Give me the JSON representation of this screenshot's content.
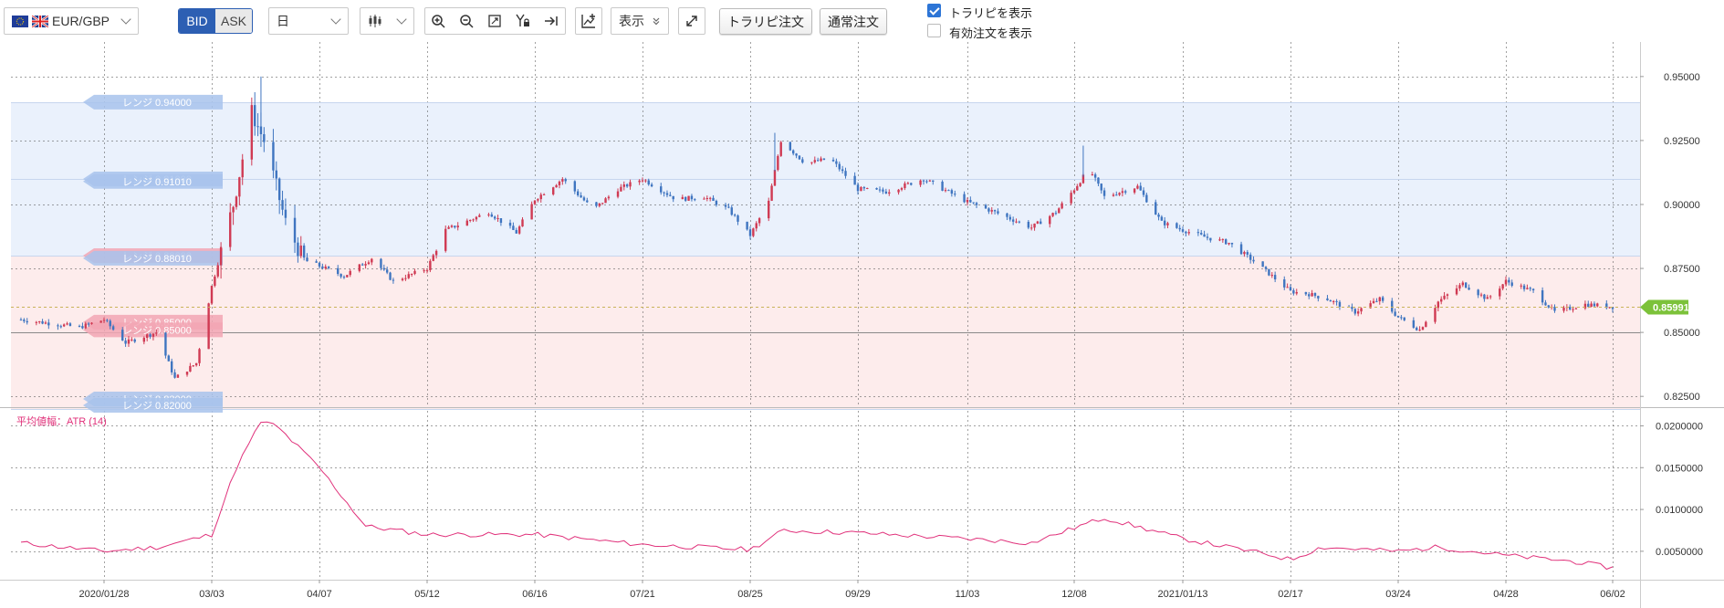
{
  "toolbar": {
    "pair": "EUR/GBP",
    "bid_label": "BID",
    "ask_label": "ASK",
    "timeframe": "日",
    "display_label": "表示",
    "torarip_order_label": "トラリピ注文",
    "normal_order_label": "通常注文",
    "show_torarip_label": "トラリピを表示",
    "show_torarip_checked": true,
    "show_active_orders_label": "有効注文を表示",
    "show_active_orders_checked": false
  },
  "colors": {
    "up": "#d03a53",
    "down": "#3f75c0",
    "atr": "#e0307a",
    "price_badge": "#7cc23a",
    "band_blue": "#eaf1fc",
    "band_red": "#fdecec"
  },
  "chart_data": [
    {
      "type": "candlestick",
      "x_dates": [
        "2020/01/28",
        "03/03",
        "04/07",
        "05/12",
        "06/16",
        "07/21",
        "08/25",
        "09/29",
        "11/03",
        "12/08",
        "2021/01/13",
        "02/17",
        "03/24",
        "04/28",
        "06/02"
      ],
      "y_tick_labels": [
        "0.95000",
        "0.92500",
        "0.90000",
        "0.87500",
        "0.85000",
        "0.82500"
      ],
      "ylim": [
        0.8215,
        0.9635
      ],
      "current_price": "0.85991",
      "range_labels": [
        {
          "text": "レンジ 0.94000",
          "band": "blue"
        },
        {
          "text": "レンジ 0.91000",
          "band": "blue"
        },
        {
          "text": "レンジ 0.91010",
          "band": "blue"
        },
        {
          "text": "レンジ 0.88000",
          "band": "red"
        },
        {
          "text": "レンジ 0.88010",
          "band": "blue"
        },
        {
          "text": "レンジ 0.85000",
          "band": "red"
        },
        {
          "text": "レンジ 0.85000",
          "band": "red"
        },
        {
          "text": "レンジ 0.82000",
          "band": "blue"
        },
        {
          "text": "レンジ 0.82000",
          "band": "blue"
        }
      ],
      "bands": [
        {
          "from": 0.88,
          "to": 0.94,
          "color": "blue"
        },
        {
          "from": 0.82,
          "to": 0.88,
          "color": "red"
        }
      ],
      "close_path": [
        [
          "2020/01/01",
          0.855
        ],
        [
          "2020/01/20",
          0.852
        ],
        [
          "2020/01/28",
          0.855
        ],
        [
          "2020/02/04",
          0.846
        ],
        [
          "2020/02/14",
          0.85
        ],
        [
          "2020/02/20",
          0.832
        ],
        [
          "2020/02/27",
          0.838
        ],
        [
          "2020/03/03",
          0.868
        ],
        [
          "2020/03/10",
          0.9
        ],
        [
          "2020/03/16",
          0.936
        ],
        [
          "2020/03/20",
          0.925
        ],
        [
          "2020/03/27",
          0.893
        ],
        [
          "2020/04/02",
          0.878
        ],
        [
          "2020/04/07",
          0.876
        ],
        [
          "2020/04/15",
          0.872
        ],
        [
          "2020/04/24",
          0.879
        ],
        [
          "2020/05/01",
          0.87
        ],
        [
          "2020/05/12",
          0.875
        ],
        [
          "2020/05/18",
          0.89
        ],
        [
          "2020/06/01",
          0.897
        ],
        [
          "2020/06/10",
          0.889
        ],
        [
          "2020/06/16",
          0.902
        ],
        [
          "2020/06/25",
          0.91
        ],
        [
          "2020/07/05",
          0.898
        ],
        [
          "2020/07/13",
          0.906
        ],
        [
          "2020/07/21",
          0.91
        ],
        [
          "2020/08/01",
          0.902
        ],
        [
          "2020/08/10",
          0.903
        ],
        [
          "2020/08/18",
          0.898
        ],
        [
          "2020/08/25",
          0.888
        ],
        [
          "2020/08/31",
          0.901
        ],
        [
          "2020/09/04",
          0.925
        ],
        [
          "2020/09/12",
          0.916
        ],
        [
          "2020/09/20",
          0.918
        ],
        [
          "2020/09/29",
          0.906
        ],
        [
          "2020/10/08",
          0.905
        ],
        [
          "2020/10/20",
          0.91
        ],
        [
          "2020/11/03",
          0.901
        ],
        [
          "2020/11/12",
          0.897
        ],
        [
          "2020/11/24",
          0.891
        ],
        [
          "2020/12/02",
          0.897
        ],
        [
          "2020/12/08",
          0.906
        ],
        [
          "2020/12/13",
          0.914
        ],
        [
          "2020/12/18",
          0.903
        ],
        [
          "2020/12/29",
          0.907
        ],
        [
          "2021/01/06",
          0.893
        ],
        [
          "2021/01/13",
          0.89
        ],
        [
          "2021/01/21",
          0.887
        ],
        [
          "2021/01/28",
          0.885
        ],
        [
          "2021/02/06",
          0.877
        ],
        [
          "2021/02/17",
          0.866
        ],
        [
          "2021/02/23",
          0.865
        ],
        [
          "2021/03/01",
          0.863
        ],
        [
          "2021/03/10",
          0.858
        ],
        [
          "2021/03/18",
          0.863
        ],
        [
          "2021/03/24",
          0.856
        ],
        [
          "2021/03/31",
          0.851
        ],
        [
          "2021/04/06",
          0.862
        ],
        [
          "2021/04/14",
          0.869
        ],
        [
          "2021/04/22",
          0.863
        ],
        [
          "2021/04/28",
          0.87
        ],
        [
          "2021/05/07",
          0.866
        ],
        [
          "2021/05/14",
          0.858
        ],
        [
          "2021/05/24",
          0.861
        ],
        [
          "2021/06/02",
          0.86
        ]
      ],
      "spikes": [
        [
          "2020/03/19",
          0.95
        ],
        [
          "2020/12/11",
          0.923
        ],
        [
          "2020/09/02",
          0.928
        ]
      ]
    },
    {
      "type": "line",
      "title": "平均値幅：ATR (14)",
      "y_tick_labels": [
        "0.0200000",
        "0.0150000",
        "0.0100000",
        "0.0050000"
      ],
      "ylim": [
        0.0016,
        0.0218
      ],
      "series": [
        {
          "x": [
            "2020/01/01",
            "2020/01/28",
            "2020/02/15",
            "2020/03/03",
            "2020/03/11",
            "2020/03/19",
            "2020/03/24",
            "2020/04/07",
            "2020/04/22",
            "2020/05/12",
            "2020/06/16",
            "2020/07/21",
            "2020/08/25",
            "2020/09/05",
            "2020/09/29",
            "2020/11/03",
            "2020/11/24",
            "2020/12/08",
            "2020/12/18",
            "2021/01/13",
            "2021/02/10",
            "2021/02/17",
            "2021/02/27",
            "2021/03/24",
            "2021/04/06",
            "2021/04/28",
            "2021/05/20",
            "2021/06/02"
          ],
          "values": [
            0.006,
            0.005,
            0.0055,
            0.007,
            0.015,
            0.0205,
            0.02,
            0.015,
            0.008,
            0.007,
            0.007,
            0.0058,
            0.0052,
            0.0075,
            0.0072,
            0.0065,
            0.006,
            0.0078,
            0.009,
            0.0065,
            0.0046,
            0.004,
            0.0055,
            0.005,
            0.0055,
            0.0045,
            0.0038,
            0.003
          ]
        }
      ]
    }
  ]
}
